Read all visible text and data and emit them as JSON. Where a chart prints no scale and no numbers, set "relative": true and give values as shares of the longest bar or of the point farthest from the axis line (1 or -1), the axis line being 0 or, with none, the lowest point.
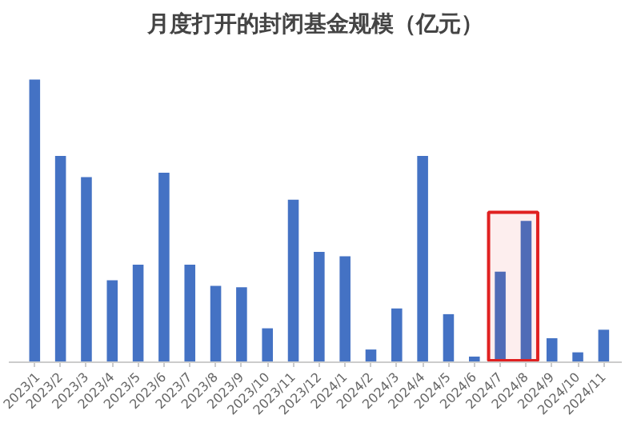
{
  "chart_data": {
    "type": "bar",
    "title": "月度打开的封闭基金规模（亿元）",
    "relative": true,
    "color": "#4472c4",
    "categories": [
      "2023/1",
      "2023/2",
      "2023/3",
      "2023/4",
      "2023/5",
      "2023/6",
      "2023/7",
      "2023/8",
      "2023/9",
      "2023/10",
      "2023/11",
      "2023/12",
      "2024/1",
      "2024/2",
      "2024/3",
      "2024/4",
      "2024/5",
      "2024/6",
      "2024/7",
      "2024/8",
      "2024/9",
      "2024/10",
      "2024/11"
    ],
    "values": [
      1,
      0.73,
      0.655,
      0.29,
      0.345,
      0.67,
      0.345,
      0.27,
      0.265,
      0.12,
      0.575,
      0.39,
      0.375,
      0.045,
      0.19,
      0.73,
      0.17,
      0.02,
      0.32,
      0.5,
      0.085,
      0.035,
      0.115
    ],
    "bands": [
      {
        "axis": "x",
        "from": "2024/7",
        "to": "2024/8",
        "color": "#e02020"
      }
    ],
    "grid": false
  }
}
